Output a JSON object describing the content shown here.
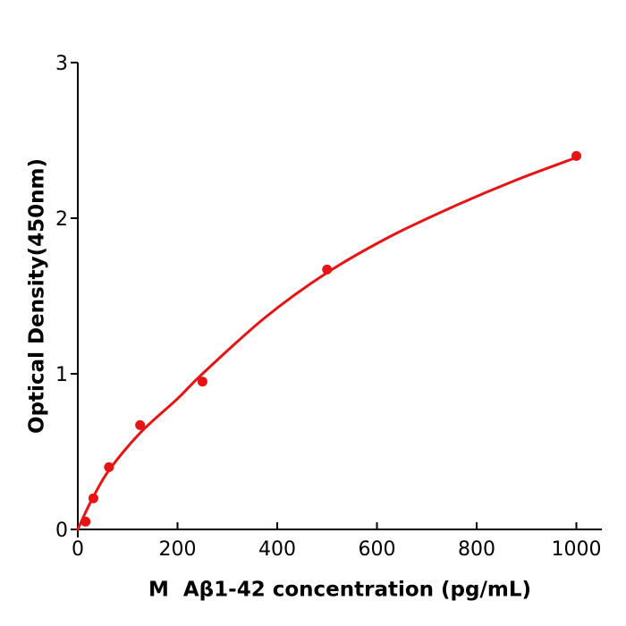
{
  "figure": {
    "xlabel": "M  Aβ1-42 concentration (pg/mL)",
    "ylabel": "Optical Density(450nm)"
  },
  "chart_data": {
    "type": "scatter",
    "title": "",
    "xlabel": "M  Aβ1-42 concentration (pg/mL)",
    "ylabel": "Optical Density(450nm)",
    "xlim": [
      0,
      1050
    ],
    "ylim": [
      0,
      3
    ],
    "x_ticks": [
      0,
      200,
      400,
      600,
      800,
      1000
    ],
    "y_ticks": [
      0,
      1,
      2,
      3
    ],
    "grid": false,
    "legend_position": "none",
    "colors": {
      "series": "#e81414",
      "axis": "#000000",
      "background": "#ffffff"
    },
    "tick_style": {
      "x_direction": "in",
      "y_direction": "out",
      "length": 8
    },
    "series": [
      {
        "role": "standard-points",
        "type": "scatter",
        "marker": "circle",
        "marker_radius": 5.5,
        "color": "#e81414",
        "points": [
          {
            "x": 15.6,
            "y": 0.05
          },
          {
            "x": 31.25,
            "y": 0.2
          },
          {
            "x": 62.5,
            "y": 0.4
          },
          {
            "x": 125,
            "y": 0.67
          },
          {
            "x": 250,
            "y": 0.95
          },
          {
            "x": 500,
            "y": 1.67
          },
          {
            "x": 1000,
            "y": 2.4
          }
        ]
      },
      {
        "role": "fit-curve",
        "type": "line",
        "stroke_width": 3,
        "color": "#e81414",
        "points": [
          {
            "x": 0,
            "y": 0.0
          },
          {
            "x": 15.6,
            "y": 0.11
          },
          {
            "x": 31.25,
            "y": 0.21
          },
          {
            "x": 62.5,
            "y": 0.38
          },
          {
            "x": 125,
            "y": 0.62
          },
          {
            "x": 200,
            "y": 0.84
          },
          {
            "x": 250,
            "y": 1.0
          },
          {
            "x": 375,
            "y": 1.36
          },
          {
            "x": 500,
            "y": 1.65
          },
          {
            "x": 625,
            "y": 1.88
          },
          {
            "x": 750,
            "y": 2.07
          },
          {
            "x": 875,
            "y": 2.24
          },
          {
            "x": 1000,
            "y": 2.39
          }
        ]
      }
    ]
  }
}
